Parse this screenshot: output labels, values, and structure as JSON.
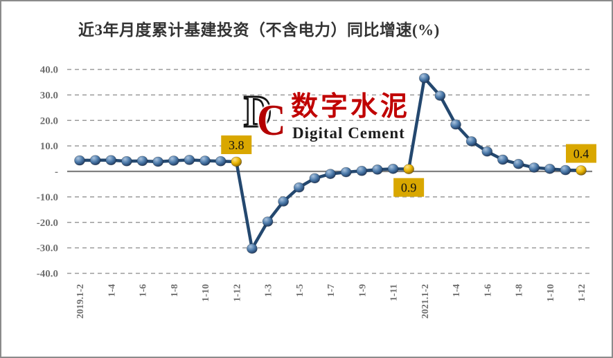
{
  "page": {
    "title": "近3年月度累计基建投资（不含电力）同比增速(%)"
  },
  "watermark": {
    "letter_d": "D",
    "letter_c": "C",
    "cn_text": "数字水泥",
    "en_text": "Digital Cement",
    "cn_color": "#c00000",
    "c_color": "#b40000"
  },
  "chart_data": {
    "type": "line",
    "title": "近3年月度累计基建投资（不含电力）同比增速(%)",
    "xlabel": "",
    "ylabel": "",
    "ylim": [
      -40,
      40
    ],
    "grid": "horizontal-dashed",
    "legend": "none",
    "categories": [
      "2019.1-2",
      "1-3",
      "1-4",
      "1-5",
      "1-6",
      "1-7",
      "1-8",
      "1-9",
      "1-10",
      "1-11",
      "1-12",
      "1-2",
      "1-3",
      "1-4",
      "1-5",
      "1-6",
      "1-7",
      "1-8",
      "1-9",
      "1-10",
      "1-11",
      "1-12",
      "2021.1-2",
      "1-3",
      "1-4",
      "1-5",
      "1-6",
      "1-7",
      "1-8",
      "1-9",
      "1-10",
      "1-11",
      "1-12"
    ],
    "series": [
      {
        "name": "累计基建投资（不含电力）同比增速",
        "values": [
          4.3,
          4.4,
          4.4,
          4.0,
          4.1,
          3.8,
          4.2,
          4.5,
          4.2,
          4.0,
          3.8,
          -30.3,
          -19.7,
          -11.8,
          -6.3,
          -2.7,
          -1.0,
          -0.3,
          0.2,
          0.7,
          1.0,
          0.9,
          36.6,
          29.7,
          18.4,
          11.8,
          7.8,
          4.6,
          2.9,
          1.5,
          1.0,
          0.5,
          0.4
        ]
      }
    ],
    "highlight_indices": [
      10,
      21,
      32
    ],
    "data_labels": [
      {
        "index": 10,
        "text": "3.8",
        "position": "above"
      },
      {
        "index": 21,
        "text": "0.9",
        "position": "below"
      },
      {
        "index": 32,
        "text": "0.4",
        "position": "above"
      }
    ],
    "y_ticks": [
      "40.0",
      "30.0",
      "20.0",
      "10.0",
      "-",
      "-10.0",
      "-20.0",
      "-30.0",
      "-40.0"
    ],
    "y_tick_values": [
      40,
      30,
      20,
      10,
      0,
      -10,
      -20,
      -30,
      -40
    ],
    "x_tick_every": 2,
    "x_tick_labels": [
      "2019.1-2",
      "1-4",
      "1-6",
      "1-8",
      "1-10",
      "1-12",
      "1-3",
      "1-5",
      "1-7",
      "1-9",
      "1-11",
      "2021.1-2",
      "1-4",
      "1-6",
      "1-8",
      "1-10",
      "1-12"
    ],
    "colors": {
      "line": "#24486F",
      "marker": "#4B79A9",
      "marker_dark": "#1F3A60",
      "highlight_marker": "#E8B400",
      "label_bg": "#D9A700",
      "label_text": "#111111",
      "grid": "#9a9a9a",
      "axis": "#808080",
      "tick_text": "#6f6f6f",
      "title_text": "#333333"
    }
  }
}
